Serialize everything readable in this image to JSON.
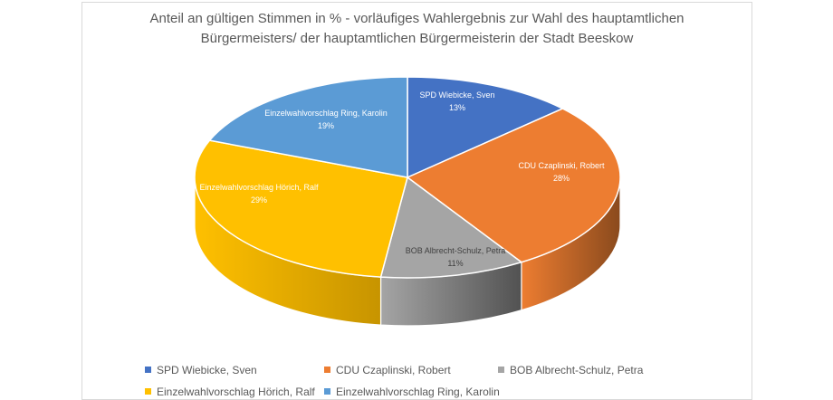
{
  "chart_data": {
    "type": "pie",
    "title_line1": "Anteil an gültigen Stimmen in % - vorläufiges Wahlergebnis zur Wahl des hauptamtlichen",
    "title_line2": "Bürgermeisters/ der hauptamtlichen Bürgermeisterin der Stadt Beeskow",
    "slices": [
      {
        "name": "SPD Wiebicke, Sven",
        "value": 13,
        "label": "13%",
        "color": "#4472C4",
        "side": "#2F528F"
      },
      {
        "name": "CDU Czaplinski, Robert",
        "value": 28,
        "label": "28%",
        "color": "#ED7D31",
        "side": "#8A4A1D"
      },
      {
        "name": "BOB Albrecht-Schulz, Petra",
        "value": 11,
        "label": "11%",
        "color": "#A5A5A5",
        "side": "#525252"
      },
      {
        "name": "Einzelwahlvorschlag Hörich, Ralf",
        "value": 29,
        "label": "29%",
        "color": "#FFC000",
        "side": "#C79400"
      },
      {
        "name": "Einzelwahlvorschlag Ring, Karolin",
        "value": 19,
        "label": "19%",
        "color": "#5B9BD5",
        "side": "#3A6E9E"
      }
    ],
    "legend_position": "bottom"
  }
}
